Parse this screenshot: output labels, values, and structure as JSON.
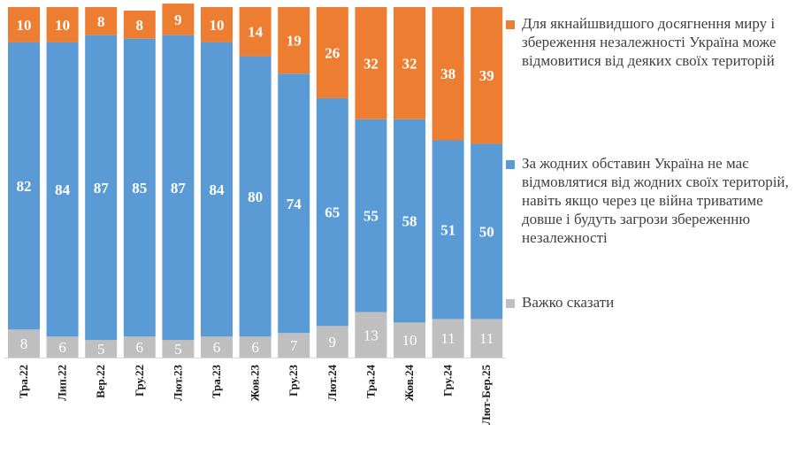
{
  "chart_data": {
    "type": "bar",
    "stacked": true,
    "orientation": "vertical",
    "normalized_to": 100,
    "grid": false,
    "legend_position": "right",
    "categories": [
      "Тра.22",
      "Лип.22",
      "Вер.22",
      "Гру.22",
      "Лют.23",
      "Тра.23",
      "Жов.23",
      "Гру.23",
      "Лют.24",
      "Тра.24",
      "Жов.24",
      "Гру.24",
      "Лют-Бер.25"
    ],
    "series": [
      {
        "name": "Важко сказати",
        "color": "#bfbfbf",
        "values": [
          8,
          6,
          5,
          6,
          5,
          6,
          6,
          7,
          9,
          13,
          10,
          11,
          11
        ]
      },
      {
        "name": "За жодних обставин Україна не має відмовлятися від жодних своїх територій, навіть якщо через це війна триватиме довше і будуть загрози збереженню незалежності",
        "color": "#5b9bd5",
        "values": [
          82,
          84,
          87,
          85,
          87,
          84,
          80,
          74,
          65,
          55,
          58,
          51,
          50
        ]
      },
      {
        "name": "Для якнайшвидшого досягнення миру і збереження незалежності Україна може відмовитися від деяких своїх територій",
        "color": "#ed7d31",
        "values": [
          10,
          10,
          8,
          8,
          9,
          10,
          14,
          19,
          26,
          32,
          32,
          38,
          39
        ]
      }
    ]
  }
}
